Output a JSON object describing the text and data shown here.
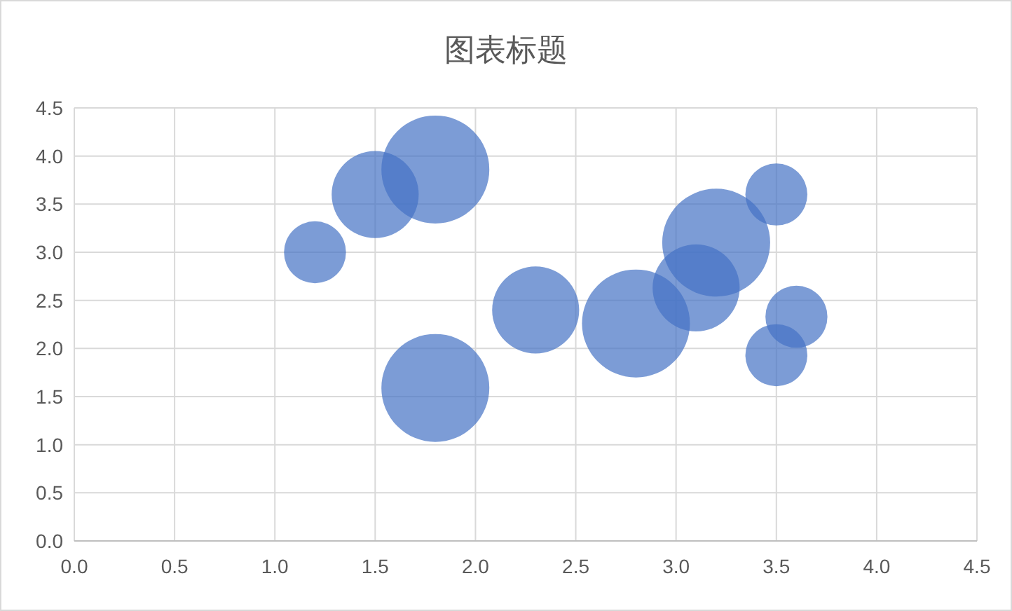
{
  "chart_data": {
    "type": "bubble",
    "title": "图表标题",
    "x": [
      1.2,
      1.5,
      1.8,
      1.8,
      2.3,
      2.8,
      3.1,
      3.2,
      3.5,
      3.6,
      3.5
    ],
    "values": [
      3.0,
      3.6,
      3.86,
      1.59,
      2.4,
      2.26,
      2.63,
      3.1,
      3.6,
      2.33,
      1.93
    ],
    "sizes": [
      0.33,
      0.65,
      1,
      1,
      0.65,
      1,
      0.65,
      1,
      0.33,
      0.33,
      0.33
    ],
    "color": "#4472c4",
    "xlim": [
      0,
      4.5
    ],
    "ylim": [
      0,
      4.5
    ],
    "xticks": [
      {
        "value": 0,
        "label": "0.0"
      },
      {
        "value": 0.5,
        "label": "0.5"
      },
      {
        "value": 1,
        "label": "1.0"
      },
      {
        "value": 1.5,
        "label": "1.5"
      },
      {
        "value": 2,
        "label": "2.0"
      },
      {
        "value": 2.5,
        "label": "2.5"
      },
      {
        "value": 3,
        "label": "3.0"
      },
      {
        "value": 3.5,
        "label": "3.5"
      },
      {
        "value": 4,
        "label": "4.0"
      },
      {
        "value": 4.5,
        "label": "4.5"
      }
    ],
    "yticks": [
      {
        "value": 0,
        "label": "0.0"
      },
      {
        "value": 0.5,
        "label": "0.5"
      },
      {
        "value": 1,
        "label": "1.0"
      },
      {
        "value": 1.5,
        "label": "1.5"
      },
      {
        "value": 2,
        "label": "2.0"
      },
      {
        "value": 2.5,
        "label": "2.5"
      },
      {
        "value": 3,
        "label": "3.0"
      },
      {
        "value": 3.5,
        "label": "3.5"
      },
      {
        "value": 4,
        "label": "4.0"
      },
      {
        "value": 4.5,
        "label": "4.5"
      }
    ],
    "grid": true
  }
}
